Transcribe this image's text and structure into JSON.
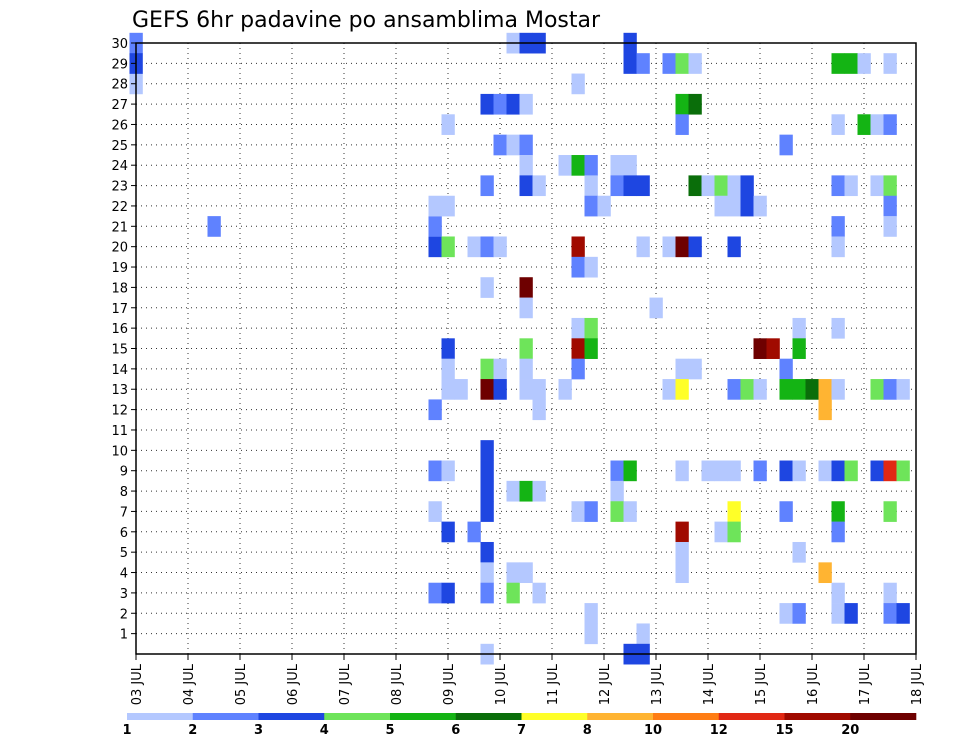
{
  "chart_data": {
    "type": "heatmap",
    "title": "GEFS 6hr padavine po ansamblima Mostar",
    "xlabel": "",
    "ylabel": "",
    "x_ticks": [
      "03 JUL",
      "04 JUL",
      "05 JUL",
      "06 JUL",
      "07 JUL",
      "08 JUL",
      "09 JUL",
      "10 JUL",
      "11 JUL",
      "12 JUL",
      "13 JUL",
      "14 JUL",
      "15 JUL",
      "16 JUL",
      "17 JUL",
      "18 JUL"
    ],
    "y_ticks": [
      "1",
      "2",
      "3",
      "4",
      "5",
      "6",
      "7",
      "8",
      "9",
      "10",
      "11",
      "12",
      "13",
      "14",
      "15",
      "16",
      "17",
      "18",
      "19",
      "20",
      "21",
      "22",
      "23",
      "24",
      "25",
      "26",
      "27",
      "28",
      "29",
      "30"
    ],
    "xlim": [
      0,
      15
    ],
    "ylim": [
      0,
      30
    ],
    "grid": true,
    "legend": {
      "position": "bottom",
      "labels": [
        "1",
        "2",
        "3",
        "4",
        "5",
        "6",
        "7",
        "8",
        "10",
        "12",
        "15",
        "20"
      ],
      "colors": [
        "#b4c8ff",
        "#5f82ff",
        "#1e46e1",
        "#6ee45a",
        "#14b414",
        "#0a6e0a",
        "#ffff28",
        "#ffb432",
        "#ff7d14",
        "#e12814",
        "#a00a00",
        "#6e0000"
      ]
    },
    "units_note": "x in days since 03 JUL 00Z (step 0.25 = 6hr), y = ensemble member, v = color class index (0 = 1-2 ... 11 = >=20)",
    "cells": [
      [
        0.0,
        30,
        1
      ],
      [
        0.0,
        28,
        0
      ],
      [
        0.0,
        29,
        2
      ],
      [
        1.5,
        21,
        1
      ],
      [
        5.75,
        20,
        2
      ],
      [
        5.75,
        21,
        1
      ],
      [
        5.75,
        22,
        0
      ],
      [
        5.75,
        12,
        1
      ],
      [
        5.75,
        9,
        1
      ],
      [
        5.75,
        7,
        0
      ],
      [
        5.75,
        3,
        1
      ],
      [
        6.0,
        26,
        0
      ],
      [
        6.0,
        22,
        0
      ],
      [
        6.0,
        20,
        3
      ],
      [
        6.0,
        15,
        2
      ],
      [
        6.0,
        14,
        0
      ],
      [
        6.0,
        13,
        0
      ],
      [
        6.0,
        9,
        0
      ],
      [
        6.0,
        6,
        2
      ],
      [
        6.0,
        3,
        2
      ],
      [
        6.25,
        13,
        0
      ],
      [
        6.5,
        20,
        0
      ],
      [
        6.5,
        6,
        1
      ],
      [
        6.75,
        27,
        2
      ],
      [
        6.75,
        23,
        1
      ],
      [
        6.75,
        20,
        1
      ],
      [
        6.75,
        18,
        0
      ],
      [
        6.75,
        14,
        3
      ],
      [
        6.75,
        13,
        11
      ],
      [
        6.75,
        10,
        2
      ],
      [
        6.75,
        9,
        2
      ],
      [
        6.75,
        8,
        2
      ],
      [
        6.75,
        7,
        2
      ],
      [
        6.75,
        5,
        2
      ],
      [
        6.75,
        4,
        0
      ],
      [
        6.75,
        3,
        1
      ],
      [
        6.75,
        0,
        0
      ],
      [
        7.0,
        27,
        1
      ],
      [
        7.0,
        25,
        1
      ],
      [
        7.0,
        20,
        0
      ],
      [
        7.0,
        14,
        0
      ],
      [
        7.0,
        13,
        2
      ],
      [
        7.25,
        30,
        0
      ],
      [
        7.25,
        27,
        2
      ],
      [
        7.25,
        25,
        0
      ],
      [
        7.25,
        8,
        0
      ],
      [
        7.25,
        4,
        0
      ],
      [
        7.25,
        3,
        3
      ],
      [
        7.5,
        30,
        2
      ],
      [
        7.5,
        27,
        0
      ],
      [
        7.5,
        25,
        1
      ],
      [
        7.5,
        24,
        0
      ],
      [
        7.5,
        23,
        2
      ],
      [
        7.5,
        18,
        11
      ],
      [
        7.5,
        17,
        0
      ],
      [
        7.5,
        15,
        3
      ],
      [
        7.5,
        14,
        0
      ],
      [
        7.5,
        13,
        0
      ],
      [
        7.5,
        8,
        4
      ],
      [
        7.5,
        4,
        0
      ],
      [
        7.75,
        30,
        2
      ],
      [
        7.75,
        23,
        0
      ],
      [
        7.75,
        13,
        0
      ],
      [
        7.75,
        12,
        0
      ],
      [
        7.75,
        8,
        0
      ],
      [
        7.75,
        3,
        0
      ],
      [
        8.25,
        24,
        0
      ],
      [
        8.25,
        13,
        0
      ],
      [
        8.5,
        28,
        0
      ],
      [
        8.5,
        24,
        4
      ],
      [
        8.5,
        20,
        10
      ],
      [
        8.5,
        19,
        1
      ],
      [
        8.5,
        16,
        0
      ],
      [
        8.5,
        15,
        10
      ],
      [
        8.5,
        14,
        1
      ],
      [
        8.5,
        7,
        0
      ],
      [
        8.75,
        24,
        1
      ],
      [
        8.75,
        23,
        0
      ],
      [
        8.75,
        22,
        1
      ],
      [
        8.75,
        19,
        0
      ],
      [
        8.75,
        16,
        3
      ],
      [
        8.75,
        15,
        4
      ],
      [
        8.75,
        7,
        1
      ],
      [
        8.75,
        1,
        0
      ],
      [
        8.75,
        2,
        0
      ],
      [
        9.0,
        22,
        0
      ],
      [
        9.25,
        24,
        0
      ],
      [
        9.25,
        23,
        1
      ],
      [
        9.25,
        9,
        1
      ],
      [
        9.25,
        8,
        0
      ],
      [
        9.25,
        7,
        3
      ],
      [
        9.5,
        30,
        2
      ],
      [
        9.5,
        29,
        2
      ],
      [
        9.5,
        24,
        0
      ],
      [
        9.5,
        23,
        2
      ],
      [
        9.5,
        9,
        4
      ],
      [
        9.5,
        7,
        0
      ],
      [
        9.5,
        0,
        2
      ],
      [
        9.75,
        29,
        1
      ],
      [
        9.75,
        23,
        2
      ],
      [
        9.75,
        20,
        0
      ],
      [
        9.75,
        1,
        0
      ],
      [
        9.75,
        0,
        2
      ],
      [
        10.0,
        17,
        0
      ],
      [
        10.25,
        29,
        1
      ],
      [
        10.25,
        20,
        0
      ],
      [
        10.25,
        13,
        0
      ],
      [
        10.5,
        29,
        3
      ],
      [
        10.5,
        27,
        4
      ],
      [
        10.5,
        26,
        1
      ],
      [
        10.5,
        20,
        11
      ],
      [
        10.5,
        14,
        0
      ],
      [
        10.5,
        13,
        6
      ],
      [
        10.5,
        9,
        0
      ],
      [
        10.5,
        6,
        10
      ],
      [
        10.5,
        5,
        0
      ],
      [
        10.5,
        4,
        0
      ],
      [
        10.75,
        29,
        0
      ],
      [
        10.75,
        27,
        5
      ],
      [
        10.75,
        23,
        5
      ],
      [
        10.75,
        20,
        2
      ],
      [
        10.75,
        14,
        0
      ],
      [
        11.0,
        23,
        0
      ],
      [
        11.0,
        9,
        0
      ],
      [
        11.25,
        23,
        3
      ],
      [
        11.25,
        22,
        0
      ],
      [
        11.25,
        9,
        0
      ],
      [
        11.25,
        6,
        0
      ],
      [
        11.5,
        23,
        0
      ],
      [
        11.5,
        22,
        0
      ],
      [
        11.5,
        20,
        2
      ],
      [
        11.5,
        13,
        1
      ],
      [
        11.5,
        9,
        0
      ],
      [
        11.5,
        7,
        6
      ],
      [
        11.5,
        6,
        3
      ],
      [
        11.75,
        23,
        2
      ],
      [
        11.75,
        22,
        2
      ],
      [
        11.75,
        13,
        3
      ],
      [
        12.0,
        22,
        0
      ],
      [
        12.0,
        15,
        11
      ],
      [
        12.0,
        13,
        0
      ],
      [
        12.0,
        9,
        1
      ],
      [
        12.25,
        15,
        10
      ],
      [
        12.5,
        25,
        1
      ],
      [
        12.5,
        14,
        1
      ],
      [
        12.5,
        13,
        4
      ],
      [
        12.5,
        9,
        2
      ],
      [
        12.5,
        7,
        1
      ],
      [
        12.5,
        2,
        0
      ],
      [
        12.75,
        16,
        0
      ],
      [
        12.75,
        15,
        4
      ],
      [
        12.75,
        13,
        4
      ],
      [
        12.75,
        9,
        0
      ],
      [
        12.75,
        5,
        0
      ],
      [
        12.75,
        2,
        1
      ],
      [
        13.0,
        13,
        5
      ],
      [
        13.25,
        13,
        7
      ],
      [
        13.25,
        12,
        7
      ],
      [
        13.25,
        9,
        0
      ],
      [
        13.25,
        4,
        7
      ],
      [
        13.5,
        29,
        4
      ],
      [
        13.5,
        26,
        0
      ],
      [
        13.5,
        23,
        1
      ],
      [
        13.5,
        21,
        1
      ],
      [
        13.5,
        20,
        0
      ],
      [
        13.5,
        16,
        0
      ],
      [
        13.5,
        13,
        0
      ],
      [
        13.5,
        9,
        2
      ],
      [
        13.5,
        7,
        4
      ],
      [
        13.5,
        6,
        1
      ],
      [
        13.5,
        3,
        0
      ],
      [
        13.5,
        2,
        0
      ],
      [
        13.75,
        29,
        4
      ],
      [
        13.75,
        23,
        0
      ],
      [
        13.75,
        9,
        3
      ],
      [
        13.75,
        2,
        2
      ],
      [
        14.0,
        29,
        0
      ],
      [
        14.0,
        26,
        4
      ],
      [
        14.25,
        26,
        0
      ],
      [
        14.25,
        23,
        0
      ],
      [
        14.25,
        13,
        3
      ],
      [
        14.25,
        9,
        2
      ],
      [
        14.5,
        29,
        0
      ],
      [
        14.5,
        26,
        1
      ],
      [
        14.5,
        23,
        3
      ],
      [
        14.5,
        22,
        1
      ],
      [
        14.5,
        21,
        0
      ],
      [
        14.5,
        13,
        1
      ],
      [
        14.5,
        9,
        9
      ],
      [
        14.5,
        7,
        3
      ],
      [
        14.5,
        3,
        0
      ],
      [
        14.5,
        2,
        1
      ],
      [
        14.75,
        13,
        0
      ],
      [
        14.75,
        9,
        3
      ],
      [
        14.75,
        2,
        2
      ]
    ]
  }
}
